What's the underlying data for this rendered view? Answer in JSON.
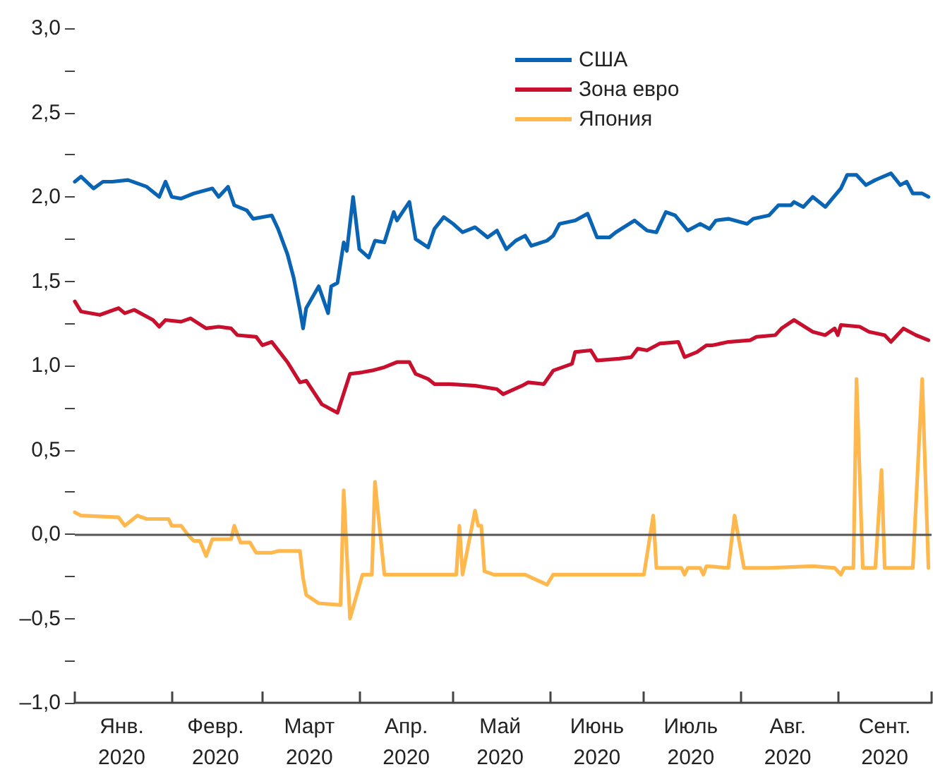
{
  "chart_data": {
    "type": "line",
    "marker": "none",
    "line_style": "solid",
    "grid": false,
    "legend": "top",
    "xlim": [
      "2020-01-01",
      "2020-10-01"
    ],
    "xticks": [
      {
        "value": "2020-01-01",
        "label": null
      },
      {
        "value": "2020-02-01",
        "label": null
      },
      {
        "value": "2020-03-01",
        "label": null
      },
      {
        "value": "2020-04-01",
        "label": null
      },
      {
        "value": "2020-05-01",
        "label": null
      },
      {
        "value": "2020-06-01",
        "label": null
      },
      {
        "value": "2020-07-01",
        "label": null
      },
      {
        "value": "2020-08-01",
        "label": null
      },
      {
        "value": "2020-09-01",
        "label": null
      },
      {
        "value": "2020-10-01",
        "label": null
      },
      {
        "value": "2020-01-16",
        "label": "Янв.\n2020"
      },
      {
        "value": "2020-02-15",
        "label": "Февр.\n2020"
      },
      {
        "value": "2020-03-16",
        "label": "Март\n2020"
      },
      {
        "value": "2020-04-16",
        "label": "Апр.\n2020"
      },
      {
        "value": "2020-05-16",
        "label": "Май\n2020"
      },
      {
        "value": "2020-06-16",
        "label": "Июнь\n2020"
      },
      {
        "value": "2020-07-16",
        "label": "Июль\n2020"
      },
      {
        "value": "2020-08-16",
        "label": "Авг.\n2020"
      },
      {
        "value": "2020-09-16",
        "label": "Сент.\n2020"
      }
    ],
    "ylim": [
      -1,
      3
    ],
    "yticks": [
      {
        "value": -1,
        "label": "–1,0"
      },
      {
        "value": -0.75,
        "label": null
      },
      {
        "value": -0.5,
        "label": "–0,5"
      },
      {
        "value": -0.25,
        "label": null
      },
      {
        "value": 0,
        "label": "0,0"
      },
      {
        "value": 0.25,
        "label": null
      },
      {
        "value": 0.5,
        "label": "0,5"
      },
      {
        "value": 0.75,
        "label": null
      },
      {
        "value": 1,
        "label": "1,0"
      },
      {
        "value": 1.25,
        "label": null
      },
      {
        "value": 1.5,
        "label": "1,5"
      },
      {
        "value": 1.75,
        "label": null
      },
      {
        "value": 2,
        "label": "2,0"
      },
      {
        "value": 2.25,
        "label": null
      },
      {
        "value": 2.5,
        "label": "2,5"
      },
      {
        "value": 2.75,
        "label": null
      },
      {
        "value": 3,
        "label": "3,0"
      }
    ],
    "ref_lines": [
      {
        "axis": "y",
        "value": 0,
        "color": "#555555"
      }
    ],
    "series": [
      {
        "name": "США",
        "color": "#0a64b4",
        "x": [
          "2020-01-01",
          "2020-01-03",
          "2020-01-07",
          "2020-01-10",
          "2020-01-13",
          "2020-01-18",
          "2020-01-24",
          "2020-01-28",
          "2020-01-30",
          "2020-02-01",
          "2020-02-04",
          "2020-02-08",
          "2020-02-14",
          "2020-02-16",
          "2020-02-19",
          "2020-02-21",
          "2020-02-25",
          "2020-02-27",
          "2020-03-04",
          "2020-03-06",
          "2020-03-09",
          "2020-03-11",
          "2020-03-13",
          "2020-03-14",
          "2020-03-15",
          "2020-03-19",
          "2020-03-22",
          "2020-03-23",
          "2020-03-25",
          "2020-03-27",
          "2020-03-28",
          "2020-03-30",
          "2020-04-01",
          "2020-04-04",
          "2020-04-06",
          "2020-04-09",
          "2020-04-12",
          "2020-04-13",
          "2020-04-17",
          "2020-04-19",
          "2020-04-23",
          "2020-04-25",
          "2020-04-28",
          "2020-05-01",
          "2020-05-04",
          "2020-05-08",
          "2020-05-12",
          "2020-05-15",
          "2020-05-18",
          "2020-05-21",
          "2020-05-24",
          "2020-05-26",
          "2020-05-31",
          "2020-06-02",
          "2020-06-04",
          "2020-06-09",
          "2020-06-13",
          "2020-06-16",
          "2020-06-20",
          "2020-06-22",
          "2020-06-28",
          "2020-07-02",
          "2020-07-05",
          "2020-07-08",
          "2020-07-11",
          "2020-07-15",
          "2020-07-19",
          "2020-07-22",
          "2020-07-24",
          "2020-07-28",
          "2020-08-03",
          "2020-08-05",
          "2020-08-10",
          "2020-08-13",
          "2020-08-17",
          "2020-08-18",
          "2020-08-21",
          "2020-08-24",
          "2020-08-28",
          "2020-09-02",
          "2020-09-04",
          "2020-09-07",
          "2020-09-10",
          "2020-09-13",
          "2020-09-18",
          "2020-09-21",
          "2020-09-23",
          "2020-09-25",
          "2020-09-28",
          "2020-09-30"
        ],
        "values": [
          2.09,
          2.12,
          2.05,
          2.09,
          2.09,
          2.1,
          2.06,
          2.0,
          2.09,
          2.0,
          1.99,
          2.02,
          2.05,
          2.0,
          2.06,
          1.95,
          1.92,
          1.87,
          1.89,
          1.81,
          1.66,
          1.52,
          1.33,
          1.22,
          1.34,
          1.47,
          1.31,
          1.47,
          1.49,
          1.73,
          1.68,
          2.0,
          1.69,
          1.64,
          1.74,
          1.73,
          1.91,
          1.86,
          1.97,
          1.75,
          1.7,
          1.81,
          1.88,
          1.84,
          1.79,
          1.82,
          1.76,
          1.8,
          1.69,
          1.74,
          1.77,
          1.71,
          1.74,
          1.77,
          1.84,
          1.86,
          1.9,
          1.76,
          1.76,
          1.79,
          1.86,
          1.8,
          1.79,
          1.91,
          1.89,
          1.8,
          1.84,
          1.81,
          1.86,
          1.87,
          1.84,
          1.87,
          1.89,
          1.95,
          1.95,
          1.97,
          1.94,
          2.0,
          1.94,
          2.05,
          2.13,
          2.13,
          2.07,
          2.1,
          2.14,
          2.07,
          2.09,
          2.02,
          2.02,
          2.0
        ]
      },
      {
        "name": "Зона евро",
        "color": "#c8102e",
        "x": [
          "2020-01-01",
          "2020-01-03",
          "2020-01-09",
          "2020-01-15",
          "2020-01-17",
          "2020-01-20",
          "2020-01-26",
          "2020-01-28",
          "2020-01-30",
          "2020-02-04",
          "2020-02-07",
          "2020-02-12",
          "2020-02-16",
          "2020-02-20",
          "2020-02-22",
          "2020-02-28",
          "2020-03-01",
          "2020-03-04",
          "2020-03-09",
          "2020-03-13",
          "2020-03-15",
          "2020-03-20",
          "2020-03-25",
          "2020-03-29",
          "2020-04-02",
          "2020-04-05",
          "2020-04-09",
          "2020-04-13",
          "2020-04-17",
          "2020-04-19",
          "2020-04-23",
          "2020-04-25",
          "2020-04-30",
          "2020-05-08",
          "2020-05-15",
          "2020-05-17",
          "2020-05-23",
          "2020-05-25",
          "2020-05-30",
          "2020-06-02",
          "2020-06-08",
          "2020-06-09",
          "2020-06-14",
          "2020-06-16",
          "2020-06-23",
          "2020-06-27",
          "2020-06-29",
          "2020-07-02",
          "2020-07-06",
          "2020-07-12",
          "2020-07-14",
          "2020-07-18",
          "2020-07-21",
          "2020-07-23",
          "2020-07-28",
          "2020-08-04",
          "2020-08-06",
          "2020-08-12",
          "2020-08-14",
          "2020-08-18",
          "2020-08-24",
          "2020-08-28",
          "2020-08-31",
          "2020-09-01",
          "2020-09-02",
          "2020-09-08",
          "2020-09-11",
          "2020-09-16",
          "2020-09-18",
          "2020-09-22",
          "2020-09-26",
          "2020-09-30"
        ],
        "values": [
          1.38,
          1.32,
          1.3,
          1.34,
          1.31,
          1.33,
          1.27,
          1.23,
          1.27,
          1.26,
          1.28,
          1.22,
          1.23,
          1.22,
          1.18,
          1.17,
          1.12,
          1.14,
          1.02,
          0.9,
          0.91,
          0.77,
          0.72,
          0.95,
          0.96,
          0.97,
          0.99,
          1.02,
          1.02,
          0.95,
          0.92,
          0.89,
          0.89,
          0.88,
          0.86,
          0.83,
          0.88,
          0.9,
          0.89,
          0.97,
          1.01,
          1.08,
          1.09,
          1.03,
          1.04,
          1.05,
          1.1,
          1.09,
          1.13,
          1.14,
          1.05,
          1.08,
          1.12,
          1.12,
          1.14,
          1.15,
          1.17,
          1.18,
          1.22,
          1.27,
          1.2,
          1.18,
          1.22,
          1.18,
          1.24,
          1.23,
          1.2,
          1.18,
          1.14,
          1.22,
          1.18,
          1.15
        ]
      },
      {
        "name": "Япония",
        "color": "#ffb84d",
        "x": [
          "2020-01-01",
          "2020-01-03",
          "2020-01-15",
          "2020-01-17",
          "2020-01-21",
          "2020-01-24",
          "2020-01-31",
          "2020-02-01",
          "2020-02-04",
          "2020-02-06",
          "2020-02-08",
          "2020-02-10",
          "2020-02-12",
          "2020-02-14",
          "2020-02-20",
          "2020-02-21",
          "2020-02-23",
          "2020-02-26",
          "2020-02-28",
          "2020-03-04",
          "2020-03-06",
          "2020-03-13",
          "2020-03-14",
          "2020-03-15",
          "2020-03-19",
          "2020-03-26",
          "2020-03-27",
          "2020-03-29",
          "2020-04-02",
          "2020-04-05",
          "2020-04-06",
          "2020-04-09",
          "2020-04-18",
          "2020-05-02",
          "2020-05-03",
          "2020-05-04",
          "2020-05-08",
          "2020-05-09",
          "2020-05-10",
          "2020-05-11",
          "2020-05-14",
          "2020-05-24",
          "2020-05-31",
          "2020-06-02",
          "2020-07-01",
          "2020-07-04",
          "2020-07-05",
          "2020-07-13",
          "2020-07-14",
          "2020-07-15",
          "2020-07-19",
          "2020-07-20",
          "2020-07-21",
          "2020-07-28",
          "2020-07-30",
          "2020-08-02",
          "2020-08-10",
          "2020-08-24",
          "2020-08-31",
          "2020-09-02",
          "2020-09-03",
          "2020-09-06",
          "2020-09-07",
          "2020-09-09",
          "2020-09-13",
          "2020-09-15",
          "2020-09-16",
          "2020-09-25",
          "2020-09-28",
          "2020-09-30"
        ],
        "values": [
          0.13,
          0.11,
          0.1,
          0.05,
          0.11,
          0.09,
          0.09,
          0.05,
          0.05,
          0.0,
          -0.04,
          -0.04,
          -0.13,
          -0.03,
          -0.03,
          0.05,
          -0.05,
          -0.05,
          -0.11,
          -0.11,
          -0.1,
          -0.1,
          -0.26,
          -0.36,
          -0.41,
          -0.42,
          0.26,
          -0.5,
          -0.24,
          -0.24,
          0.31,
          -0.24,
          -0.24,
          -0.24,
          0.05,
          -0.24,
          0.14,
          0.05,
          0.05,
          -0.22,
          -0.24,
          -0.24,
          -0.3,
          -0.24,
          -0.24,
          0.11,
          -0.2,
          -0.2,
          -0.24,
          -0.2,
          -0.2,
          -0.24,
          -0.19,
          -0.2,
          0.11,
          -0.2,
          -0.2,
          -0.19,
          -0.2,
          -0.24,
          -0.2,
          -0.2,
          0.92,
          -0.2,
          -0.2,
          0.38,
          -0.2,
          -0.2,
          0.92,
          -0.2
        ]
      }
    ]
  }
}
